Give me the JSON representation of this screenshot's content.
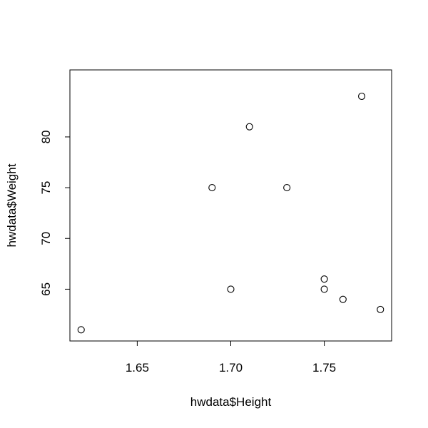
{
  "chart_data": {
    "type": "scatter",
    "xlabel": "hwdata$Height",
    "ylabel": "hwdata$Weight",
    "xlim": [
      1.614,
      1.786
    ],
    "ylim": [
      59.9,
      86.6
    ],
    "x_ticks": [
      1.65,
      1.7,
      1.75
    ],
    "x_tick_labels": [
      "1.65",
      "1.70",
      "1.75"
    ],
    "y_ticks": [
      65,
      70,
      75,
      80
    ],
    "y_tick_labels": [
      "65",
      "70",
      "75",
      "80"
    ],
    "points": [
      {
        "x": 1.62,
        "y": 61
      },
      {
        "x": 1.69,
        "y": 75
      },
      {
        "x": 1.7,
        "y": 65
      },
      {
        "x": 1.71,
        "y": 81
      },
      {
        "x": 1.73,
        "y": 75
      },
      {
        "x": 1.75,
        "y": 66
      },
      {
        "x": 1.75,
        "y": 65
      },
      {
        "x": 1.76,
        "y": 64
      },
      {
        "x": 1.77,
        "y": 84
      },
      {
        "x": 1.78,
        "y": 63
      }
    ],
    "marker": "open-circle",
    "grid": false,
    "legend": "none"
  }
}
